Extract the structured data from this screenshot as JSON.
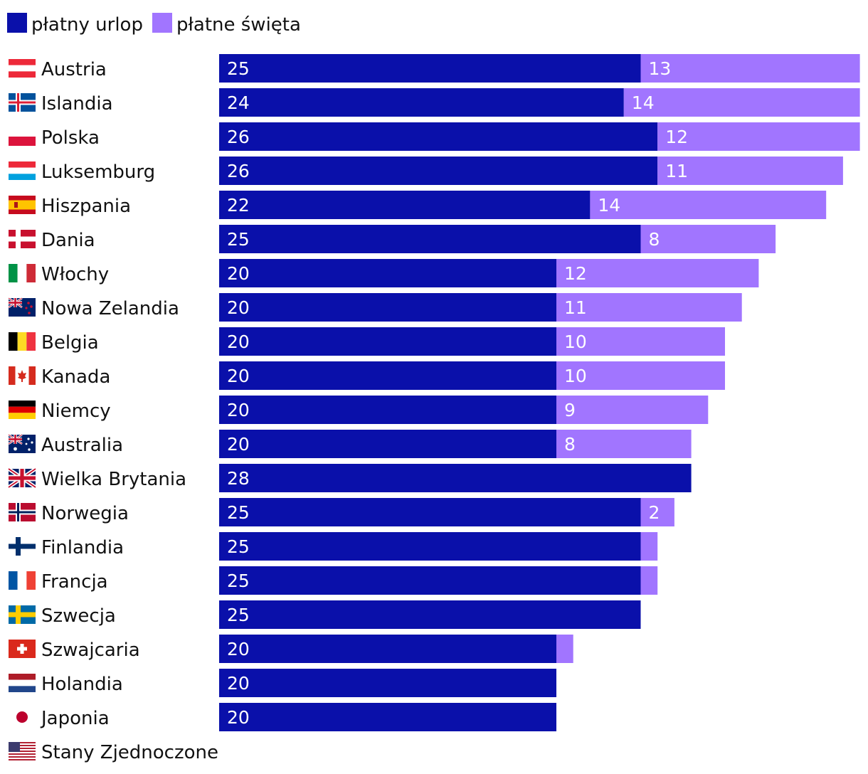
{
  "colors": {
    "paid_leave": "#0a10aa",
    "paid_holidays": "#a175ff",
    "text": "#111111",
    "value_text": "#ffffff"
  },
  "legend": {
    "paid_leave": "płatny urlop",
    "paid_holidays": "płatne święta"
  },
  "chart_data": {
    "type": "bar",
    "orientation": "horizontal",
    "stacked": true,
    "title": "",
    "xlabel": "",
    "ylabel": "",
    "xlim": [
      0,
      38
    ],
    "grid": false,
    "legend_position": "top-left",
    "categories": [
      "Austria",
      "Islandia",
      "Polska",
      "Luksemburg",
      "Hiszpania",
      "Dania",
      "Włochy",
      "Nowa Zelandia",
      "Belgia",
      "Kanada",
      "Niemcy",
      "Australia",
      "Wielka Brytania",
      "Norwegia",
      "Finlandia",
      "Francja",
      "Szwecja",
      "Szwajcaria",
      "Holandia",
      "Japonia",
      "Stany Zjednoczone"
    ],
    "flags": [
      "flag-austria-icon",
      "flag-iceland-icon",
      "flag-poland-icon",
      "flag-luxembourg-icon",
      "flag-spain-icon",
      "flag-denmark-icon",
      "flag-italy-icon",
      "flag-new-zealand-icon",
      "flag-belgium-icon",
      "flag-canada-icon",
      "flag-germany-icon",
      "flag-australia-icon",
      "flag-united-kingdom-icon",
      "flag-norway-icon",
      "flag-finland-icon",
      "flag-france-icon",
      "flag-sweden-icon",
      "flag-switzerland-icon",
      "flag-netherlands-icon",
      "flag-japan-icon",
      "flag-united-states-icon"
    ],
    "series": [
      {
        "name": "płatny urlop",
        "values": [
          25,
          24,
          26,
          26,
          22,
          25,
          20,
          20,
          20,
          20,
          20,
          20,
          28,
          25,
          25,
          25,
          25,
          20,
          20,
          20,
          0
        ],
        "value_labels": [
          "25",
          "24",
          "26",
          "26",
          "22",
          "25",
          "20",
          "20",
          "20",
          "20",
          "20",
          "20",
          "28",
          "25",
          "25",
          "25",
          "25",
          "20",
          "20",
          "20",
          ""
        ]
      },
      {
        "name": "płatne święta",
        "values": [
          13,
          14,
          12,
          11,
          14,
          8,
          12,
          11,
          10,
          10,
          9,
          8,
          0,
          2,
          1,
          1,
          0,
          1,
          0,
          0,
          0
        ],
        "value_labels": [
          "13",
          "14",
          "12",
          "11",
          "14",
          "8",
          "12",
          "11",
          "10",
          "10",
          "9",
          "8",
          "",
          "2",
          "",
          "",
          "",
          "",
          "",
          "",
          ""
        ]
      }
    ]
  }
}
